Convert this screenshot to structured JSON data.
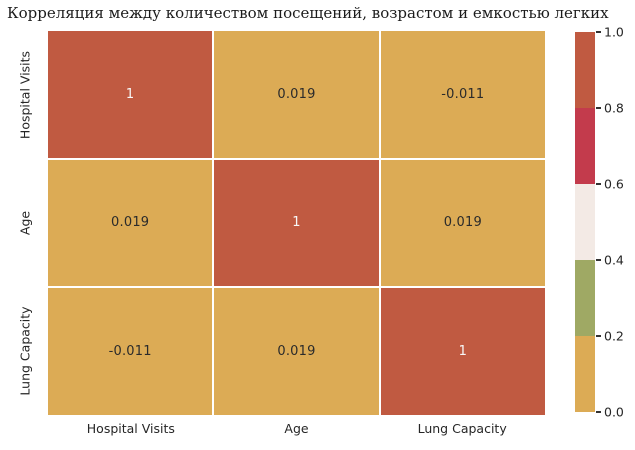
{
  "chart_data": {
    "type": "heatmap",
    "title": "Корреляция между количеством посещений, возрастом и емкостью легких",
    "categories": [
      "Hospital Visits",
      "Age",
      "Lung Capacity"
    ],
    "matrix": [
      [
        1,
        0.019,
        -0.011
      ],
      [
        0.019,
        1,
        0.019
      ],
      [
        -0.011,
        0.019,
        1
      ]
    ],
    "cell_labels": [
      [
        "1",
        "0.019",
        "-0.011"
      ],
      [
        "0.019",
        "1",
        "0.019"
      ],
      [
        "-0.011",
        "0.019",
        "1"
      ]
    ],
    "value_range": [
      0.0,
      1.0
    ],
    "grid": "white 2px cell borders",
    "legend_position": "right colorbar",
    "colorbar": {
      "ticks": [
        {
          "label": "1.0",
          "value": 1.0
        },
        {
          "label": "0.8",
          "value": 0.8
        },
        {
          "label": "0.6",
          "value": 0.6
        },
        {
          "label": "0.4",
          "value": 0.4
        },
        {
          "label": "0.2",
          "value": 0.2
        },
        {
          "label": "0.0",
          "value": 0.0
        }
      ],
      "segments_top_to_bottom": [
        "#c05a41",
        "#c33b4c",
        "#f3eae5",
        "#9fa964",
        "#dcab55"
      ]
    },
    "color_scale_stops": [
      {
        "max": 0.2,
        "color": "#dcab55"
      },
      {
        "max": 0.4,
        "color": "#9fa964"
      },
      {
        "max": 0.6,
        "color": "#f3eae5"
      },
      {
        "max": 0.8,
        "color": "#c33b4c"
      },
      {
        "max": 1.01,
        "color": "#c05a41"
      }
    ],
    "annotation_colors": {
      "dark": "#2b2b2b",
      "light": "#f8f8f8"
    }
  }
}
